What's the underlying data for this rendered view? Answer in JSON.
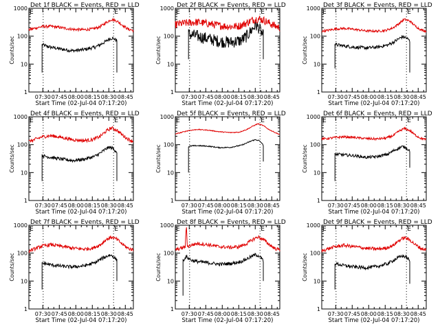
{
  "colors": {
    "events": "#000000",
    "lld": "#e00000",
    "axis": "#000000",
    "background": "#ffffff"
  },
  "ylabel": "Counts/sec",
  "xlabel": "Start Time (02-Jul-04 07:17:20)",
  "x_tick_labels": [
    "07:30",
    "07:45",
    "08:00",
    "08:15",
    "08:30",
    "08:45"
  ],
  "y_tick_labels": [
    "1",
    "10",
    "100",
    "1000"
  ],
  "marker_letter": "E",
  "chart_data": [
    {
      "type": "line",
      "title": "Det 1f BLACK = Events, RED = LLD",
      "xlabel": "Start Time (02-Jul-04 07:17:20)",
      "ylabel": "Counts/sec",
      "x_unit": "minutes after 07:17:20",
      "xlim": [
        0,
        95
      ],
      "ylim": [
        1,
        1000
      ],
      "yscale": "log",
      "x_ticks": [
        12.67,
        27.67,
        42.67,
        57.67,
        72.67,
        87.67
      ],
      "markers": {
        "label": "E",
        "x": [
          0,
          77
        ]
      },
      "dotted_lines_x": [
        13,
        77
      ],
      "series": [
        {
          "name": "Events",
          "color": "#000000",
          "noise": 0.06,
          "drop_start": 5,
          "drop_end": 5,
          "x": [
            12,
            15,
            20,
            30,
            40,
            50,
            60,
            65,
            70,
            73,
            76,
            79,
            80
          ],
          "y": [
            50,
            45,
            40,
            34,
            30,
            33,
            40,
            50,
            65,
            80,
            85,
            75,
            70
          ]
        },
        {
          "name": "LLD",
          "color": "#e00000",
          "noise": 0.05,
          "x": [
            0,
            5,
            12,
            20,
            30,
            40,
            50,
            58,
            65,
            70,
            75,
            80,
            85,
            90,
            95
          ],
          "y": [
            170,
            190,
            220,
            225,
            200,
            175,
            170,
            180,
            220,
            300,
            400,
            350,
            250,
            180,
            160
          ]
        }
      ]
    },
    {
      "type": "line",
      "title": "Det 2f BLACK = Events, RED = LLD",
      "xlabel": "Start Time (02-Jul-04 07:17:20)",
      "ylabel": "Counts/sec",
      "x_unit": "minutes after 07:17:20",
      "xlim": [
        0,
        95
      ],
      "ylim": [
        1,
        1000
      ],
      "yscale": "log",
      "x_ticks": [
        12.67,
        27.67,
        42.67,
        57.67,
        72.67,
        87.67
      ],
      "markers": {
        "label": "E",
        "x": [
          0,
          77
        ]
      },
      "dotted_lines_x": [
        13,
        77
      ],
      "series": [
        {
          "name": "Events",
          "color": "#000000",
          "noise": 0.22,
          "drop_start": 15,
          "drop_end": 15,
          "x": [
            12,
            15,
            20,
            30,
            40,
            50,
            60,
            65,
            70,
            73,
            76,
            79,
            80
          ],
          "y": [
            120,
            110,
            100,
            80,
            65,
            60,
            70,
            100,
            180,
            250,
            200,
            120,
            100
          ]
        },
        {
          "name": "LLD",
          "color": "#e00000",
          "noise": 0.14,
          "x": [
            0,
            5,
            12,
            20,
            30,
            40,
            50,
            58,
            65,
            70,
            75,
            80,
            85,
            90,
            95
          ],
          "y": [
            260,
            280,
            300,
            320,
            280,
            240,
            220,
            230,
            300,
            380,
            420,
            380,
            300,
            240,
            200
          ]
        }
      ]
    },
    {
      "type": "line",
      "title": "Det 3f BLACK = Events, RED = LLD",
      "xlabel": "Start Time (02-Jul-04 07:17:20)",
      "ylabel": "Counts/sec",
      "x_unit": "minutes after 07:17:20",
      "xlim": [
        0,
        95
      ],
      "ylim": [
        1,
        1000
      ],
      "yscale": "log",
      "x_ticks": [
        12.67,
        27.67,
        42.67,
        57.67,
        72.67,
        87.67
      ],
      "markers": {
        "label": "E",
        "x": [
          0,
          77
        ]
      },
      "dotted_lines_x": [
        13,
        77
      ],
      "series": [
        {
          "name": "Events",
          "color": "#000000",
          "noise": 0.06,
          "drop_start": 7,
          "drop_end": 5,
          "x": [
            12,
            15,
            20,
            30,
            40,
            50,
            60,
            65,
            70,
            73,
            76,
            79,
            80
          ],
          "y": [
            50,
            48,
            45,
            40,
            38,
            40,
            48,
            60,
            80,
            95,
            90,
            75,
            65
          ]
        },
        {
          "name": "LLD",
          "color": "#e00000",
          "noise": 0.04,
          "x": [
            0,
            5,
            12,
            20,
            30,
            40,
            50,
            58,
            65,
            70,
            75,
            80,
            85,
            90,
            95
          ],
          "y": [
            150,
            160,
            180,
            190,
            175,
            155,
            150,
            160,
            200,
            280,
            400,
            350,
            230,
            170,
            150
          ]
        }
      ]
    },
    {
      "type": "line",
      "title": "Det 4f BLACK = Events, RED = LLD",
      "xlabel": "Start Time (02-Jul-04 07:17:20)",
      "ylabel": "Counts/sec",
      "x_unit": "minutes after 07:17:20",
      "xlim": [
        0,
        95
      ],
      "ylim": [
        1,
        1000
      ],
      "yscale": "log",
      "x_ticks": [
        12.67,
        27.67,
        42.67,
        57.67,
        72.67,
        87.67
      ],
      "markers": {
        "label": "E",
        "x": [
          0,
          77
        ]
      },
      "dotted_lines_x": [
        13,
        77
      ],
      "series": [
        {
          "name": "Events",
          "color": "#000000",
          "noise": 0.06,
          "drop_start": 5,
          "drop_end": 5,
          "x": [
            12,
            15,
            20,
            30,
            40,
            50,
            60,
            65,
            70,
            73,
            76,
            79,
            80
          ],
          "y": [
            40,
            38,
            35,
            30,
            27,
            30,
            38,
            50,
            70,
            80,
            75,
            60,
            55
          ]
        },
        {
          "name": "LLD",
          "color": "#e00000",
          "noise": 0.06,
          "x": [
            0,
            5,
            12,
            20,
            30,
            40,
            50,
            58,
            65,
            70,
            75,
            80,
            85,
            90,
            95
          ],
          "y": [
            130,
            150,
            190,
            210,
            180,
            150,
            140,
            150,
            200,
            300,
            400,
            330,
            220,
            160,
            130
          ]
        }
      ]
    },
    {
      "type": "line",
      "title": "Det 5f BLACK = Events, RED = LLD",
      "xlabel": "Start Time (02-Jul-04 07:17:20)",
      "ylabel": "Counts/sec",
      "x_unit": "minutes after 07:17:20",
      "xlim": [
        0,
        95
      ],
      "ylim": [
        1,
        1000
      ],
      "yscale": "log",
      "x_ticks": [
        12.67,
        27.67,
        42.67,
        57.67,
        72.67,
        87.67
      ],
      "markers": {
        "label": "E",
        "x": [
          0,
          77
        ]
      },
      "dotted_lines_x": [
        13,
        77
      ],
      "series": [
        {
          "name": "Events",
          "color": "#000000",
          "noise": 0.02,
          "drop_start": 10,
          "drop_end": 25,
          "x": [
            12,
            15,
            20,
            30,
            40,
            50,
            60,
            65,
            70,
            73,
            76,
            79,
            80
          ],
          "y": [
            85,
            90,
            92,
            88,
            78,
            80,
            95,
            115,
            140,
            150,
            140,
            110,
            90
          ]
        },
        {
          "name": "LLD",
          "color": "#e00000",
          "noise": 0.015,
          "x": [
            0,
            5,
            12,
            20,
            30,
            40,
            50,
            58,
            65,
            70,
            75,
            80,
            85,
            90,
            95
          ],
          "y": [
            240,
            270,
            320,
            350,
            330,
            290,
            270,
            280,
            350,
            450,
            560,
            480,
            350,
            280,
            230
          ]
        }
      ]
    },
    {
      "type": "line",
      "title": "Det 6f BLACK = Events, RED = LLD",
      "xlabel": "Start Time (02-Jul-04 07:17:20)",
      "ylabel": "Counts/sec",
      "x_unit": "minutes after 07:17:20",
      "xlim": [
        0,
        95
      ],
      "ylim": [
        1,
        1000
      ],
      "yscale": "log",
      "x_ticks": [
        12.67,
        27.67,
        42.67,
        57.67,
        72.67,
        87.67
      ],
      "markers": {
        "label": "E",
        "x": [
          0,
          77
        ]
      },
      "dotted_lines_x": [
        13,
        77
      ],
      "series": [
        {
          "name": "Events",
          "color": "#000000",
          "noise": 0.05,
          "drop_start": 5,
          "drop_end": 15,
          "x": [
            12,
            15,
            20,
            30,
            40,
            50,
            60,
            65,
            70,
            73,
            76,
            79,
            80
          ],
          "y": [
            45,
            45,
            43,
            40,
            35,
            37,
            45,
            60,
            75,
            85,
            80,
            65,
            60
          ]
        },
        {
          "name": "LLD",
          "color": "#e00000",
          "noise": 0.04,
          "x": [
            0,
            5,
            12,
            20,
            30,
            40,
            50,
            58,
            65,
            70,
            75,
            80,
            85,
            90,
            95
          ],
          "y": [
            160,
            165,
            180,
            190,
            180,
            165,
            160,
            170,
            210,
            300,
            380,
            320,
            220,
            170,
            150
          ]
        }
      ]
    },
    {
      "type": "line",
      "title": "Det 7f BLACK = Events, RED = LLD",
      "xlabel": "Start Time (02-Jul-04 07:17:20)",
      "ylabel": "Counts/sec",
      "x_unit": "minutes after 07:17:20",
      "xlim": [
        0,
        95
      ],
      "ylim": [
        1,
        1000
      ],
      "yscale": "log",
      "x_ticks": [
        12.67,
        27.67,
        42.67,
        57.67,
        72.67,
        87.67
      ],
      "markers": {
        "label": "E",
        "x": [
          0,
          77
        ]
      },
      "dotted_lines_x": [
        13,
        77
      ],
      "series": [
        {
          "name": "Events",
          "color": "#000000",
          "noise": 0.06,
          "drop_start": 5,
          "drop_end": 10,
          "x": [
            12,
            15,
            20,
            30,
            40,
            50,
            60,
            65,
            70,
            73,
            76,
            79,
            80
          ],
          "y": [
            45,
            42,
            38,
            34,
            32,
            35,
            45,
            60,
            75,
            85,
            80,
            62,
            55
          ]
        },
        {
          "name": "LLD",
          "color": "#e00000",
          "noise": 0.06,
          "x": [
            0,
            5,
            12,
            20,
            30,
            40,
            50,
            58,
            65,
            70,
            75,
            80,
            85,
            90,
            95
          ],
          "y": [
            120,
            140,
            180,
            200,
            175,
            150,
            140,
            150,
            200,
            300,
            380,
            310,
            210,
            150,
            130
          ]
        }
      ]
    },
    {
      "type": "line",
      "title": "Det 8f BLACK = Events, RED = LLD",
      "xlabel": "Start Time (02-Jul-04 07:17:20)",
      "ylabel": "Counts/sec",
      "x_unit": "minutes after 07:17:20",
      "xlim": [
        0,
        95
      ],
      "ylim": [
        1,
        1000
      ],
      "yscale": "log",
      "x_ticks": [
        12.67,
        27.67,
        42.67,
        57.67,
        72.67,
        87.67
      ],
      "markers": {
        "label": "E",
        "x": [
          0,
          77
        ]
      },
      "dotted_lines_x": [
        13,
        77
      ],
      "series": [
        {
          "name": "Events",
          "color": "#000000",
          "noise": 0.06,
          "drop_start": 3,
          "drop_end": 10,
          "x": [
            7,
            10,
            12,
            15,
            20,
            30,
            40,
            50,
            60,
            65,
            70,
            73,
            76,
            79,
            80
          ],
          "y": [
            55,
            75,
            65,
            55,
            50,
            45,
            40,
            42,
            50,
            62,
            78,
            88,
            80,
            60,
            50
          ]
        },
        {
          "name": "LLD",
          "color": "#e00000",
          "noise": 0.06,
          "x": [
            0,
            5,
            9,
            10,
            11,
            12,
            20,
            30,
            40,
            50,
            58,
            65,
            70,
            75,
            80,
            85,
            90,
            95
          ],
          "y": [
            130,
            150,
            170,
            1000,
            170,
            180,
            220,
            200,
            170,
            160,
            170,
            220,
            300,
            380,
            310,
            210,
            150,
            130
          ]
        }
      ]
    },
    {
      "type": "line",
      "title": "Det 9f BLACK = Events, RED = LLD",
      "xlabel": "Start Time (02-Jul-04 07:17:20)",
      "ylabel": "Counts/sec",
      "x_unit": "minutes after 07:17:20",
      "xlim": [
        0,
        95
      ],
      "ylim": [
        1,
        1000
      ],
      "yscale": "log",
      "x_ticks": [
        12.67,
        27.67,
        42.67,
        57.67,
        72.67,
        87.67
      ],
      "markers": {
        "label": "E",
        "x": [
          0,
          77
        ]
      },
      "dotted_lines_x": [
        13,
        77
      ],
      "series": [
        {
          "name": "Events",
          "color": "#000000",
          "noise": 0.06,
          "drop_start": 5,
          "drop_end": 8,
          "x": [
            12,
            15,
            20,
            30,
            40,
            50,
            60,
            65,
            70,
            73,
            76,
            79,
            80
          ],
          "y": [
            42,
            40,
            36,
            32,
            30,
            33,
            42,
            55,
            70,
            80,
            75,
            60,
            50
          ]
        },
        {
          "name": "LLD",
          "color": "#e00000",
          "noise": 0.06,
          "x": [
            0,
            5,
            12,
            20,
            30,
            40,
            50,
            58,
            65,
            70,
            75,
            80,
            85,
            90,
            95
          ],
          "y": [
            120,
            140,
            170,
            190,
            170,
            150,
            140,
            150,
            190,
            280,
            360,
            300,
            200,
            150,
            130
          ]
        }
      ]
    }
  ]
}
